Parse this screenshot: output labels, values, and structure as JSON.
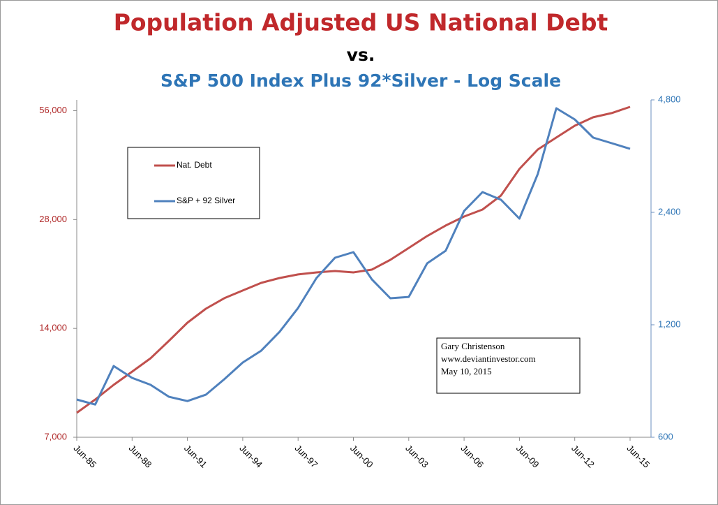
{
  "chart_data": {
    "type": "line",
    "title": "Population Adjusted US National Debt",
    "subtitle_lines": [
      "vs.",
      "S&P 500 Index Plus 92*Silver - Log Scale"
    ],
    "annotation": [
      "Gary Christenson",
      "www.deviantinvestor.com",
      "May 10, 2015"
    ],
    "log_scale": true,
    "legend": "upper left",
    "categories": [
      "Jun-85",
      null,
      null,
      "Jun-88",
      null,
      null,
      "Jun-91",
      null,
      null,
      "Jun-94",
      null,
      null,
      "Jun-97",
      null,
      null,
      "Jun-00",
      null,
      null,
      "Jun-03",
      null,
      null,
      "Jun-06",
      null,
      null,
      "Jun-09",
      null,
      null,
      "Jun-12",
      null,
      null,
      "Jun-15"
    ],
    "series": [
      {
        "name": "Nat. Debt",
        "color": "#c0504d",
        "axis": "y",
        "values": [
          8180,
          8900,
          9770,
          10630,
          11570,
          12940,
          14520,
          15870,
          16970,
          17820,
          18710,
          19300,
          19740,
          20000,
          20180,
          20000,
          20360,
          21670,
          23370,
          25210,
          26950,
          28550,
          29850,
          32630,
          38640,
          43760,
          47200,
          50900,
          53700,
          55160,
          57400
        ]
      },
      {
        "name": "S&P + 92 Silver",
        "color": "#4f81bd",
        "axis": "y2",
        "values": [
          757,
          734,
          931,
          865,
          829,
          770,
          750,
          780,
          858,
          951,
          1023,
          1150,
          1331,
          1601,
          1814,
          1878,
          1588,
          1413,
          1425,
          1753,
          1894,
          2420,
          2719,
          2593,
          2309,
          3042,
          4558,
          4254,
          3805,
          3676,
          3550
        ]
      }
    ],
    "ylim": [
      7000,
      60000
    ],
    "yticks": [
      {
        "value": 7000,
        "label": "7,000"
      },
      {
        "value": 14000,
        "label": "14,000"
      },
      {
        "value": 28000,
        "label": "28,000"
      },
      {
        "value": 56000,
        "label": "56,000"
      }
    ],
    "y2lim": [
      600,
      4800
    ],
    "y2ticks": [
      600,
      {
        "value": 1200,
        "label": "1,200"
      },
      {
        "value": 2400,
        "label": "2,400"
      },
      {
        "value": 4800,
        "label": "4,800"
      }
    ]
  }
}
